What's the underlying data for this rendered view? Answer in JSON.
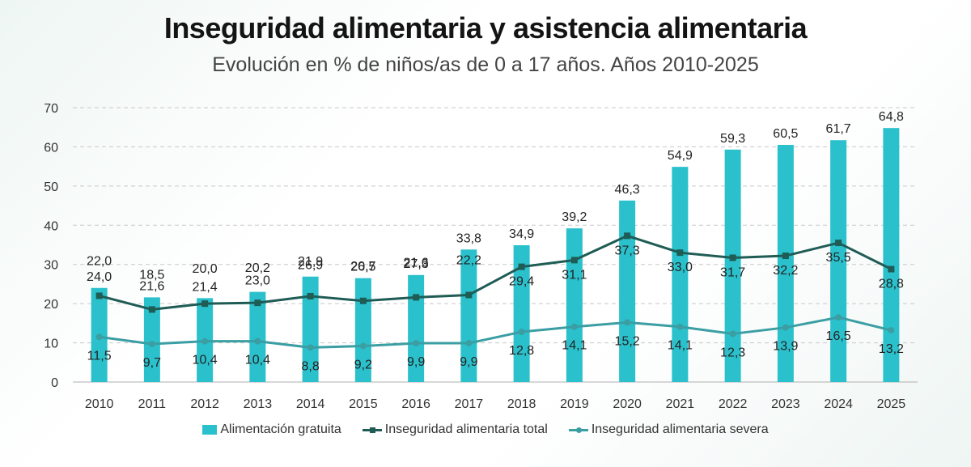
{
  "title": "Inseguridad alimentaria y asistencia alimentaria",
  "subtitle": "Evolución en % de niños/as de 0 a 17 años. Años 2010-2025",
  "chart_data": {
    "type": "bar",
    "categories": [
      "2010",
      "2011",
      "2012",
      "2013",
      "2014",
      "2015",
      "2016",
      "2017",
      "2018",
      "2019",
      "2020",
      "2021",
      "2022",
      "2023",
      "2024",
      "2025"
    ],
    "ylim": [
      0,
      70
    ],
    "yticks": [
      0,
      10,
      20,
      30,
      40,
      50,
      60,
      70
    ],
    "grid": true,
    "legend_position": "bottom",
    "series": [
      {
        "name": "Alimentación gratuita",
        "type": "bar",
        "color": "#2bc1cc",
        "values": [
          24.0,
          21.6,
          21.4,
          23.0,
          26.9,
          26.5,
          27.3,
          33.8,
          34.9,
          39.2,
          46.3,
          54.9,
          59.3,
          60.5,
          61.7,
          64.8
        ],
        "labels": [
          "24,0",
          "21,6",
          "21,4",
          "23,0",
          "26,9",
          "26,5",
          "27,3",
          "33,8",
          "34,9",
          "39,2",
          "46,3",
          "54,9",
          "59,3",
          "60,5",
          "61,7",
          "64,8"
        ]
      },
      {
        "name": "Inseguridad alimentaria total",
        "type": "line",
        "marker": "square",
        "color": "#1f5c55",
        "values": [
          22.0,
          18.5,
          20.0,
          20.2,
          21.9,
          20.7,
          21.6,
          22.2,
          29.4,
          31.1,
          37.3,
          33.0,
          31.7,
          32.2,
          35.5,
          28.8
        ],
        "labels": [
          "22,0",
          "18,5",
          "20,0",
          "20,2",
          "21,9",
          "20,7",
          "21,6",
          "22,2",
          "29,4",
          "31,1",
          "37,3",
          "33,0",
          "31,7",
          "32,2",
          "35,5",
          "28,8"
        ]
      },
      {
        "name": "Inseguridad alimentaria severa",
        "type": "line",
        "marker": "circle",
        "color": "#3a9ea3",
        "values": [
          11.5,
          9.7,
          10.4,
          10.4,
          8.8,
          9.2,
          9.9,
          9.9,
          12.8,
          14.1,
          15.2,
          14.1,
          12.3,
          13.9,
          16.5,
          13.2
        ],
        "labels": [
          "11,5",
          "9,7",
          "10,4",
          "10,4",
          "8,8",
          "9,2",
          "9,9",
          "9,9",
          "12,8",
          "14,1",
          "15,2",
          "14,1",
          "12,3",
          "13,9",
          "16,5",
          "13,2"
        ]
      }
    ]
  }
}
